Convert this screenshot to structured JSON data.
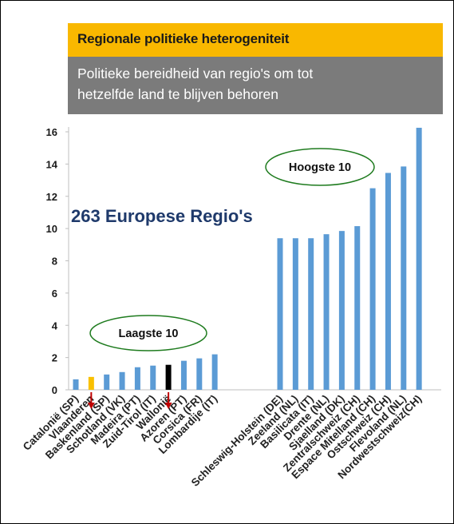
{
  "title": "Regionale politieke heterogeniteit",
  "subtitle": "Politieke bereidheid van regio's om tot\nhetzelfde land te blijven behoren",
  "colors": {
    "bar": "#5b9bd5",
    "highlight_yellow": "#f9c000",
    "highlight_black": "#000000",
    "arrow": "#c00000",
    "ellipse": "#1e7b1e",
    "title_bg": "#f9b800",
    "subtitle_bg": "#7b7b7b"
  },
  "annotations": {
    "total": "263 Europese Regio's",
    "lowest": "Laagste 10",
    "highest": "Hoogste 10"
  },
  "chart_data": {
    "type": "bar",
    "title": "Regionale politieke heterogeniteit",
    "subtitle": "Politieke bereidheid van regio's om tot hetzelfde land te blijven behoren",
    "xlabel": "",
    "ylabel": "",
    "ylim": [
      0,
      16
    ],
    "yticks": [
      0,
      2,
      4,
      6,
      8,
      10,
      12,
      14,
      16
    ],
    "grid": false,
    "legend": "none",
    "groups": [
      {
        "name": "Laagste 10",
        "categories": [
          "Catalonië (SP)",
          "Vlaanderen",
          "Baskenland (SP)",
          "Schotland (VK)",
          "Madeira (PT)",
          "Zuid-Tirol (IT)",
          "Wallonië",
          "Azoren (PT)",
          "Corsica (FR)",
          "Lombardije (IT)"
        ],
        "values": [
          0.65,
          0.8,
          0.95,
          1.1,
          1.4,
          1.5,
          1.55,
          1.8,
          1.95,
          2.2
        ],
        "highlight": {
          "Vlaanderen": "yellow",
          "Wallonië": "black"
        }
      },
      {
        "name": "Hoogste 10",
        "categories": [
          "Schleswig-Holstein (DE)",
          "Zeeland (NL)",
          "Basilicata (IT)",
          "Drente (NL)",
          "Sjaelland (DK)",
          "Zentralschweiz (CH)",
          "Espace Mitelland (CH)",
          "Ostschweiz (CH)",
          "Flevoland (NL)",
          "Nordwestschweiz(CH)"
        ],
        "values": [
          9.4,
          9.4,
          9.4,
          9.65,
          9.85,
          10.15,
          12.5,
          13.45,
          13.85,
          16.25
        ]
      }
    ],
    "arrows_to": [
      "Vlaanderen",
      "Wallonië"
    ]
  }
}
